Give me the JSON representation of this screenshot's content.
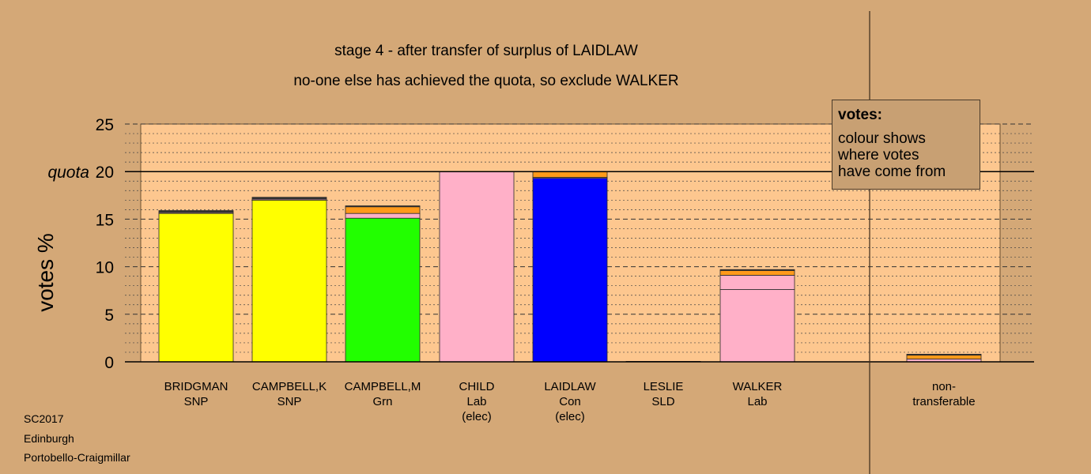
{
  "title": "stage 4 - after transfer of surplus of LAIDLAW",
  "subtitle": "no-one else has achieved the quota, so exclude WALKER",
  "legend": {
    "title": "votes:",
    "lines": [
      "colour shows",
      "where votes",
      "have come from"
    ]
  },
  "footer": [
    "SC2017",
    "Edinburgh",
    "Portobello-Craigmillar"
  ],
  "colors": {
    "background": "#d4a877",
    "plot_area": "#fdc78f",
    "SNP": "#ffff00",
    "Grn": "#22ff00",
    "Lab": "#ffb0c8",
    "Con": "#0000ff",
    "transfer_orange": "#ff9a1a",
    "transfer_dark": "#333333"
  },
  "chart_data": {
    "type": "bar",
    "stacked": true,
    "ylabel": "votes %",
    "ylim": [
      0,
      25
    ],
    "yticks": [
      0,
      5,
      10,
      15,
      20,
      25
    ],
    "quota": 20,
    "quota_label": "quota",
    "grid": true,
    "categories": [
      {
        "name": "BRIDGMAN",
        "party": "SNP",
        "note": ""
      },
      {
        "name": "CAMPBELL,K",
        "party": "SNP",
        "note": ""
      },
      {
        "name": "CAMPBELL,M",
        "party": "Grn",
        "note": ""
      },
      {
        "name": "CHILD",
        "party": "Lab",
        "note": "(elec)"
      },
      {
        "name": "LAIDLAW",
        "party": "Con",
        "note": "(elec)"
      },
      {
        "name": "LESLIE",
        "party": "SLD",
        "note": ""
      },
      {
        "name": "WALKER",
        "party": "Lab",
        "note": ""
      },
      {
        "name": "non-",
        "party": "transferable",
        "note": ""
      }
    ],
    "stacks": [
      [
        {
          "value": 15.6,
          "color": "#ffff00"
        },
        {
          "value": 0.1,
          "color": "#ffb0c8"
        },
        {
          "value": 0.2,
          "color": "#333333"
        }
      ],
      [
        {
          "value": 17.0,
          "color": "#ffff00"
        },
        {
          "value": 0.1,
          "color": "#ffb0c8"
        },
        {
          "value": 0.2,
          "color": "#333333"
        }
      ],
      [
        {
          "value": 15.1,
          "color": "#22ff00"
        },
        {
          "value": 0.5,
          "color": "#ffb0c8"
        },
        {
          "value": 0.7,
          "color": "#ff9a1a"
        },
        {
          "value": 0.1,
          "color": "#333333"
        }
      ],
      [
        {
          "value": 20.0,
          "color": "#ffb0c8"
        }
      ],
      [
        {
          "value": 19.3,
          "color": "#0000ff"
        },
        {
          "value": 0.1,
          "color": "#ffb0c8"
        },
        {
          "value": 0.6,
          "color": "#ff9a1a"
        }
      ],
      [
        {
          "value": 0.05,
          "color": "#ffff00"
        }
      ],
      [
        {
          "value": 7.6,
          "color": "#ffb0c8"
        },
        {
          "value": 1.5,
          "color": "#ffb0c8"
        },
        {
          "value": 0.5,
          "color": "#ff9a1a"
        },
        {
          "value": 0.1,
          "color": "#333333"
        }
      ],
      [
        {
          "value": 0.3,
          "color": "#ffb0c8"
        },
        {
          "value": 0.4,
          "color": "#ff9a1a"
        },
        {
          "value": 0.1,
          "color": "#333333"
        }
      ]
    ]
  }
}
